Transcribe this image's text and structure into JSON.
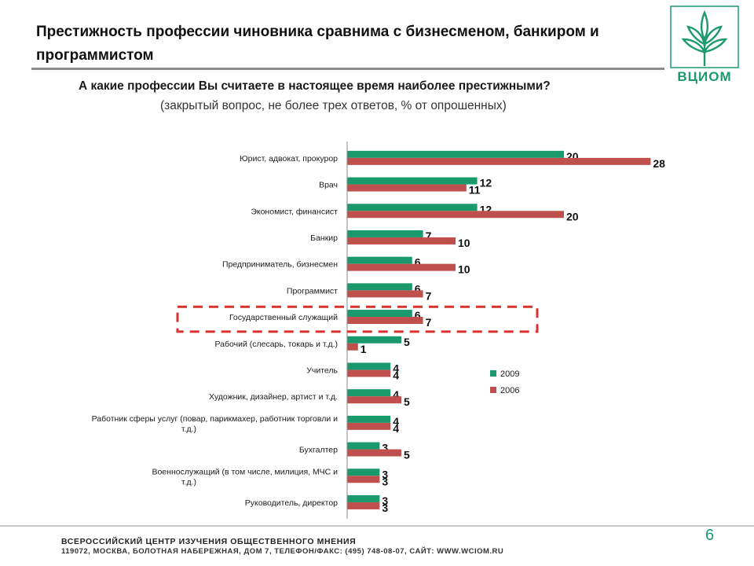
{
  "header": {
    "title": "Престижность профессии чиновника сравнима с бизнесменом, банкиром и программистом",
    "logo_text": "ВЦИОМ"
  },
  "question": "А какие профессии Вы считаете в настоящее время наиболее престижными?",
  "question_note": "(закрытый вопрос, не более трех ответов, % от опрошенных)",
  "colors": {
    "series_2009": "#1a9a6c",
    "series_2006": "#c0504d",
    "highlight": "#d8312f"
  },
  "chart_data": {
    "type": "bar",
    "orientation": "horizontal",
    "categories": [
      "Юрист, адвокат, прокурор",
      "Врач",
      "Экономист, финансист",
      "Банкир",
      "Предприниматель, бизнесмен",
      "Программист",
      "Государственный служащий",
      "Рабочий (слесарь, токарь и т.д.)",
      "Учитель",
      "Художник, дизайнер, артист и т.д.",
      "Работник сферы услуг (повар, парикмахер, работник торговли и т.д.)",
      "Бухгалтер",
      "Военнослужащий (в том числе, милиция, МЧС и т.д.)",
      "Руководитель, директор"
    ],
    "series": [
      {
        "name": "2009",
        "values": [
          20,
          12,
          12,
          7,
          6,
          6,
          6,
          5,
          4,
          4,
          4,
          3,
          3,
          3
        ]
      },
      {
        "name": "2006",
        "values": [
          28,
          11,
          20,
          10,
          10,
          7,
          7,
          1,
          4,
          5,
          4,
          5,
          3,
          3
        ]
      }
    ],
    "highlighted_category": "Государственный служащий",
    "legend_position": "right-middle",
    "grid": false
  },
  "footer": {
    "org": "ВСЕРОССИЙСКИЙ ЦЕНТР ИЗУЧЕНИЯ ОБЩЕСТВЕННОГО МНЕНИЯ",
    "address": "119072, МОСКВА, БОЛОТНАЯ НАБЕРЕЖНАЯ, ДОМ 7, ТЕЛЕФОН/ФАКС: (495) 748-08-07, САЙТ: WWW.WCIOM.RU",
    "page_number": "6"
  }
}
